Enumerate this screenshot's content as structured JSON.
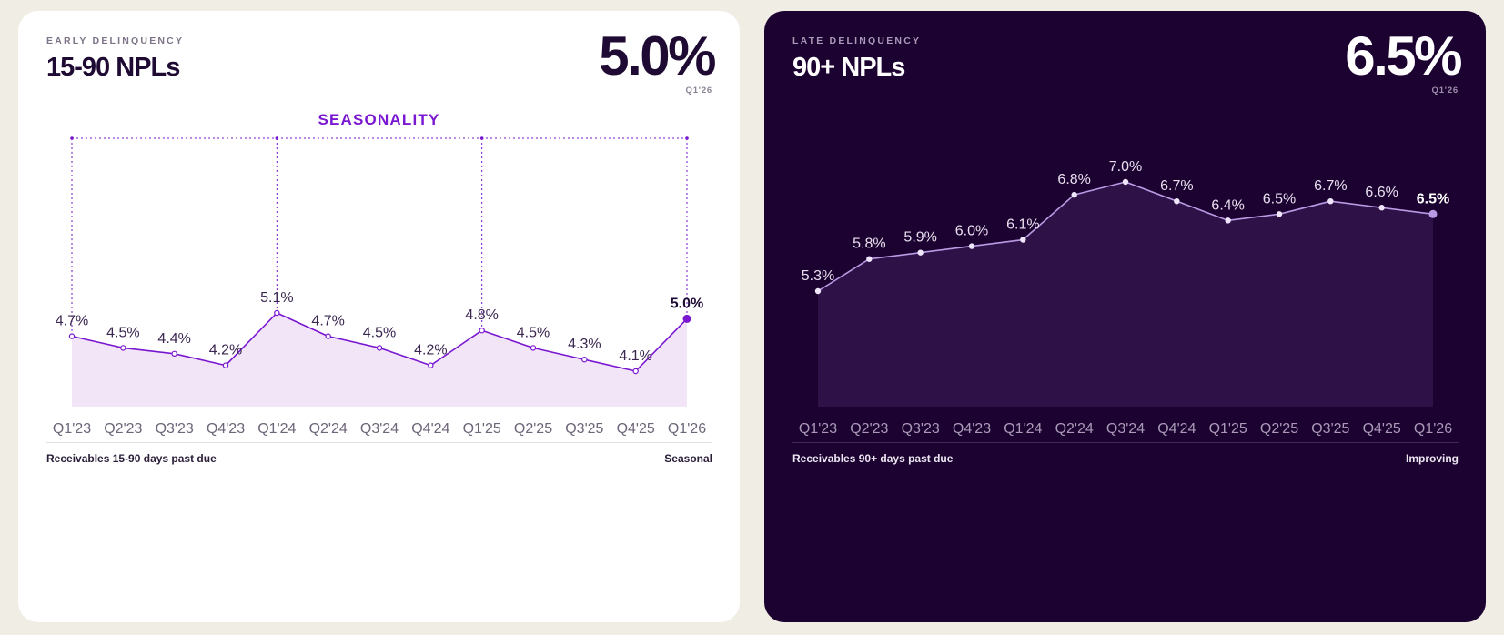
{
  "colors": {
    "page_bg": "#f0ede4",
    "left_card_bg": "#ffffff",
    "right_card_bg": "#1c0230",
    "left_line": "#7a17d0",
    "left_area": "#f2e5f8",
    "left_label": "#3a2650",
    "left_tick": "#6d6578",
    "right_line": "#b89be4",
    "right_area": "#2e1247",
    "right_label": "#e8e0f0",
    "right_tick": "#a99bb8",
    "seasonality": "#7a17d0"
  },
  "left_card": {
    "eyebrow": "EARLY DELINQUENCY",
    "title": "15-90 NPLs",
    "big_value": "5.0%",
    "big_value_label": "Q1'26",
    "seasonality_label": "SEASONALITY",
    "footer_left": "Receivables 15-90 days past due",
    "footer_right": "Seasonal"
  },
  "right_card": {
    "eyebrow": "LATE DELINQUENCY",
    "title": "90+ NPLs",
    "big_value": "6.5%",
    "big_value_label": "Q1'26",
    "footer_left": "Receivables 90+ days past due",
    "footer_right": "Improving"
  },
  "chart_data": [
    {
      "type": "area",
      "categories": [
        "Q1'23",
        "Q2'23",
        "Q3'23",
        "Q4'23",
        "Q1'24",
        "Q2'24",
        "Q3'24",
        "Q4'24",
        "Q1'25",
        "Q2'25",
        "Q3'25",
        "Q4'25",
        "Q1'26"
      ],
      "values": [
        4.7,
        4.5,
        4.4,
        4.2,
        5.1,
        4.7,
        4.5,
        4.2,
        4.8,
        4.5,
        4.3,
        4.1,
        5.0
      ],
      "data_labels": [
        "4.7%",
        "4.5%",
        "4.4%",
        "4.2%",
        "5.1%",
        "4.7%",
        "4.5%",
        "4.2%",
        "4.8%",
        "4.5%",
        "4.3%",
        "4.1%",
        "5.0%"
      ],
      "unit": "%",
      "seasonality_marker_categories": [
        "Q1'23",
        "Q1'24",
        "Q1'25",
        "Q1'26"
      ],
      "highlight_last_point": true,
      "grid": false
    },
    {
      "type": "area",
      "categories": [
        "Q1'23",
        "Q2'23",
        "Q3'23",
        "Q4'23",
        "Q1'24",
        "Q2'24",
        "Q3'24",
        "Q4'24",
        "Q1'25",
        "Q2'25",
        "Q3'25",
        "Q4'25",
        "Q1'26"
      ],
      "values": [
        5.3,
        5.8,
        5.9,
        6.0,
        6.1,
        6.8,
        7.0,
        6.7,
        6.4,
        6.5,
        6.7,
        6.6,
        6.5
      ],
      "data_labels": [
        "5.3%",
        "5.8%",
        "5.9%",
        "6.0%",
        "6.1%",
        "6.8%",
        "7.0%",
        "6.7%",
        "6.4%",
        "6.5%",
        "6.7%",
        "6.6%",
        "6.5%"
      ],
      "unit": "%",
      "highlight_last_point": true,
      "grid": false
    }
  ]
}
